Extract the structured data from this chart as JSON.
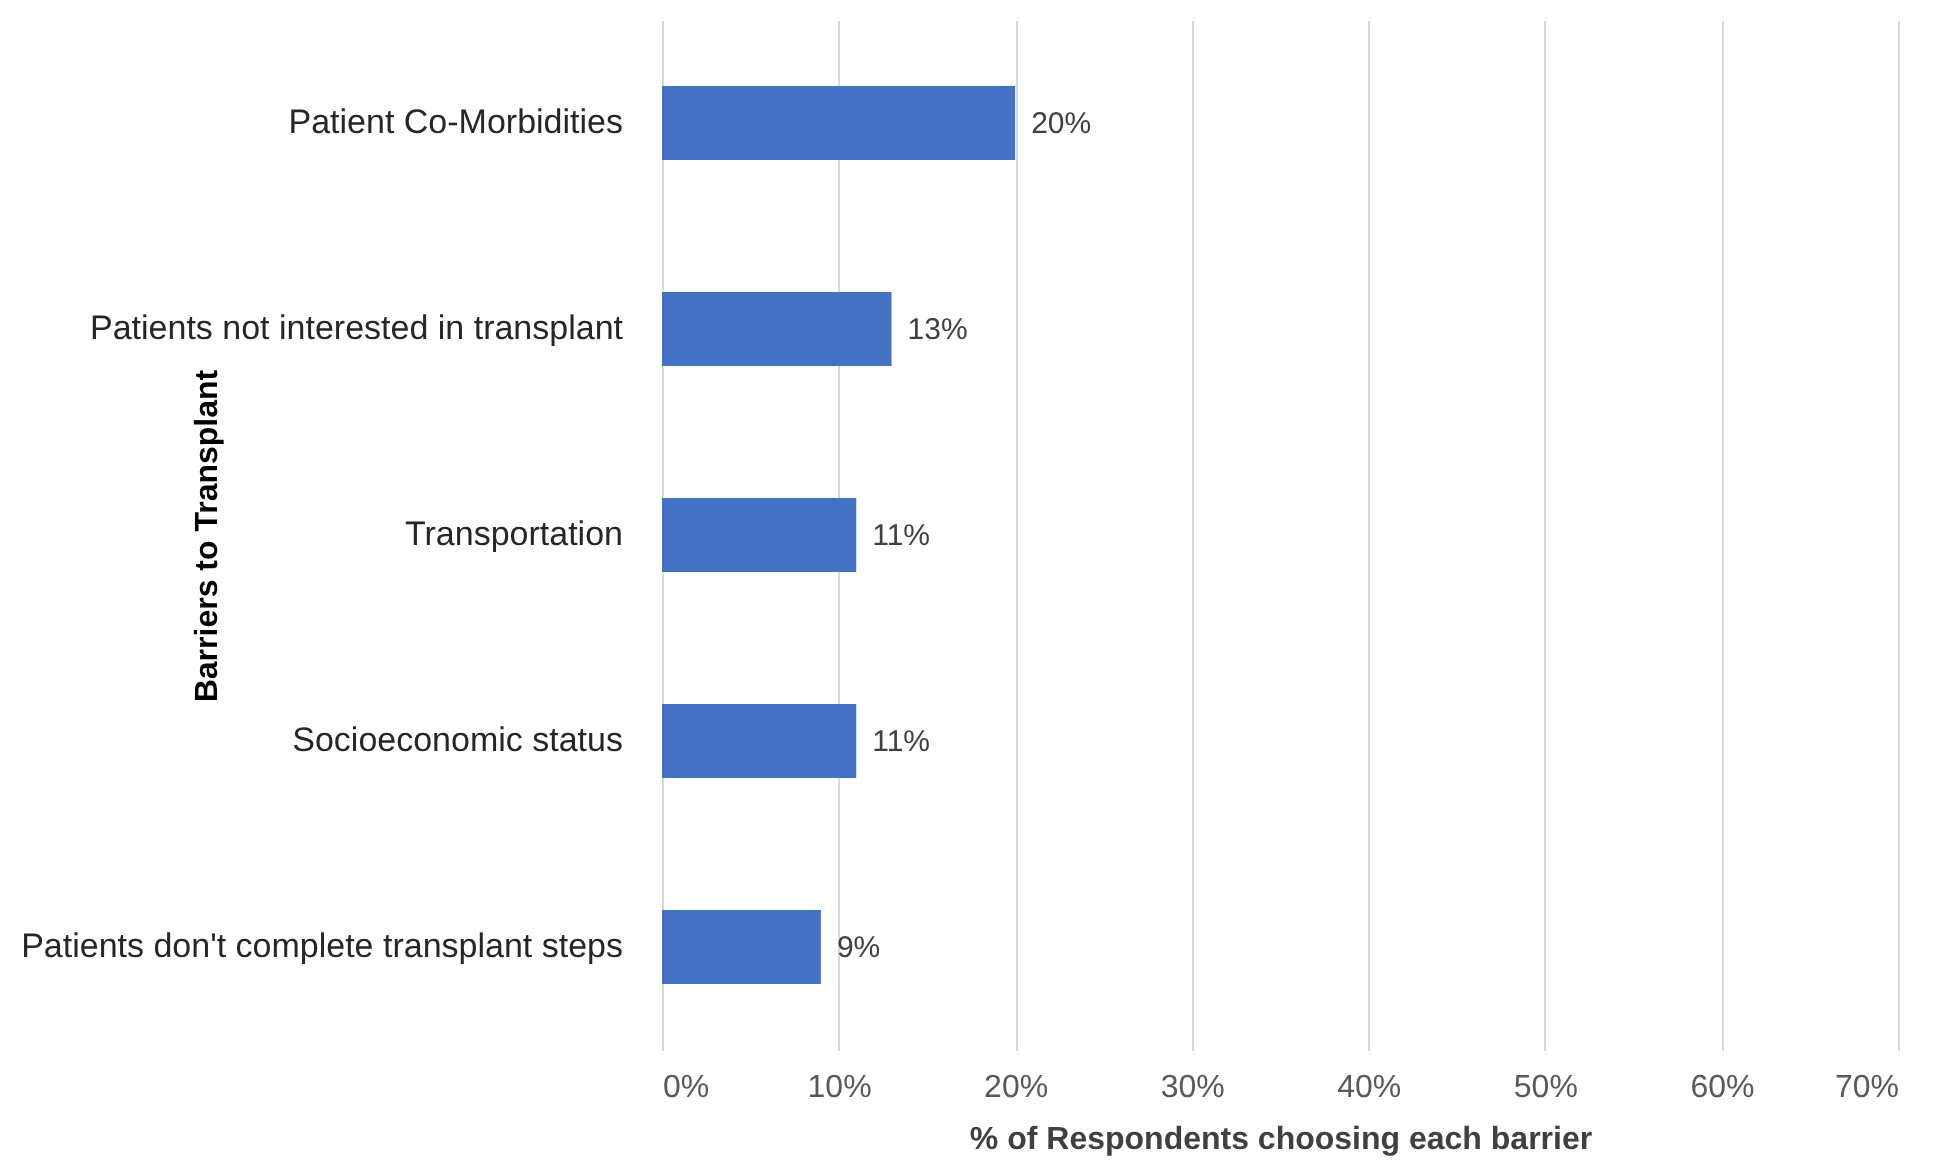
{
  "chart_data": {
    "type": "bar",
    "orientation": "horizontal",
    "ylabel": "Barriers to Transplant",
    "xlabel": "% of Respondents choosing each barrier",
    "categories": [
      "Patient Co-Morbidities",
      "Patients not interested in transplant",
      "Transportation",
      "Socioeconomic status",
      "Patients don't complete transplant steps"
    ],
    "values": [
      20,
      13,
      11,
      11,
      9
    ],
    "value_labels": [
      "20%",
      "13%",
      "11%",
      "11%",
      "9%"
    ],
    "color": "#4472c4",
    "xlim": [
      0,
      70
    ],
    "xticks": [
      {
        "value": 0,
        "label": "0%"
      },
      {
        "value": 10,
        "label": "10%"
      },
      {
        "value": 20,
        "label": "20%"
      },
      {
        "value": 30,
        "label": "30%"
      },
      {
        "value": 40,
        "label": "40%"
      },
      {
        "value": 50,
        "label": "50%"
      },
      {
        "value": 60,
        "label": "60%"
      },
      {
        "value": 70,
        "label": "70%"
      }
    ],
    "grid": "x"
  }
}
